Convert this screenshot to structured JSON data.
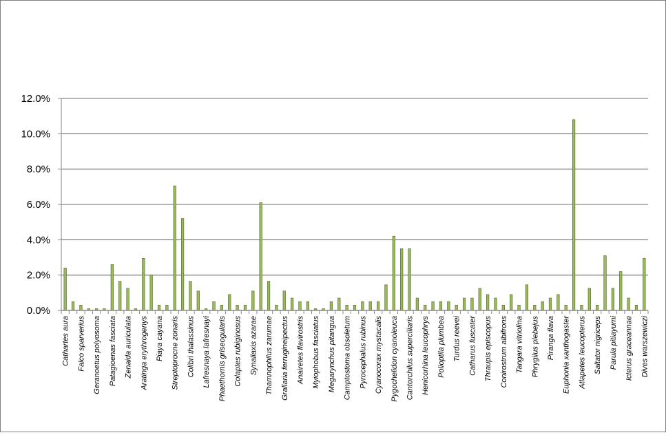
{
  "chart_data": {
    "type": "bar",
    "title": "",
    "xlabel": "",
    "ylabel": "",
    "ylim": [
      0,
      0.12
    ],
    "yticks": [
      "0.0%",
      "2.0%",
      "4.0%",
      "6.0%",
      "8.0%",
      "10.0%",
      "12.0%"
    ],
    "grid": true,
    "legend": "none",
    "bar_color": "#9bbb59",
    "bar_outline": "#4f6228",
    "categories": [
      "Cathartes aura",
      "",
      "Falco sparverius",
      "",
      "Geranoetus polyosoma",
      "",
      "Patagioenas fasciata",
      "",
      "Zenaida auriculata",
      "",
      "Aratinga erythrogenys",
      "",
      "Piaya cayana",
      "",
      "Streptoprocne zonaris",
      "",
      "Colibri thalassinus",
      "",
      "Lafresnaya lafresnayi",
      "",
      "Phaethornis griseogularis",
      "",
      "Colaptes rubiginosus",
      "",
      "Synallaxis azarae",
      "",
      "Thamnophilus zarumae",
      "",
      "Grallaria ferrugineipectus",
      "",
      "Anairetes flavirostris",
      "",
      "Myiophobus fasciatus",
      "",
      "Megarynchus pitangua",
      "",
      "Camptostoma obsoletum",
      "",
      "Pyrocephalus rubinus",
      "",
      "Cyanocorax mystacalis",
      "",
      "Pygochelidon cyanoleuca",
      "",
      "Cantorchilus superciliaris",
      "",
      "Henicorhina leucophrys",
      "",
      "Polioptila plumbea",
      "",
      "Turdus reevei",
      "",
      "Catharus fuscater",
      "",
      "Thraupis episcopus",
      "",
      "Conirostrum albifrons",
      "",
      "Tangara vitriolina",
      "",
      "Phrygilus plebejus",
      "",
      "Piranga flava",
      "",
      "Euphonia xanthogaster",
      "",
      "Atlapetes leucopterus",
      "",
      "Saltator nigriceps",
      "",
      "Parula pitiayumi",
      "",
      "Icterus graceannae",
      "",
      "Dives warszewiczi"
    ],
    "values": [
      0.024,
      0.005,
      0.003,
      0.001,
      0.001,
      0.001,
      0.026,
      0.0165,
      0.0125,
      0.001,
      0.0295,
      0.02,
      0.003,
      0.003,
      0.0705,
      0.052,
      0.0165,
      0.011,
      0.001,
      0.005,
      0.003,
      0.009,
      0.003,
      0.003,
      0.011,
      0.061,
      0.0165,
      0.003,
      0.011,
      0.007,
      0.005,
      0.005,
      0.001,
      0.001,
      0.005,
      0.007,
      0.003,
      0.003,
      0.005,
      0.005,
      0.005,
      0.0145,
      0.042,
      0.035,
      0.035,
      0.007,
      0.003,
      0.005,
      0.005,
      0.005,
      0.003,
      0.007,
      0.007,
      0.0125,
      0.009,
      0.007,
      0.003,
      0.009,
      0.003,
      0.0145,
      0.003,
      0.005,
      0.007,
      0.009,
      0.003,
      0.108,
      0.003,
      0.0125,
      0.003,
      0.031,
      0.0125,
      0.022,
      0.007,
      0.003,
      0.0295
    ]
  }
}
